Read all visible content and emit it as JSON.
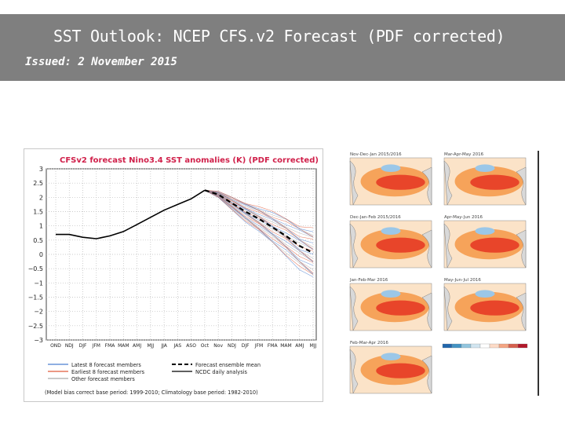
{
  "slide": {
    "title": "SST Outlook: NCEP CFS.v2 Forecast (PDF corrected)",
    "issued": "Issued: 2 November 2015"
  },
  "chart_data": {
    "type": "line",
    "title": "CFSv2 forecast Nino3.4 SST anomalies (K) (PDF corrected)",
    "categories": [
      "OND",
      "NDJ",
      "DJF",
      "JFM",
      "FMA",
      "MAM",
      "AMJ",
      "MJJ",
      "JJA",
      "JAS",
      "ASO",
      "Oct",
      "Nov",
      "NDJ",
      "DJF",
      "JFM",
      "FMA",
      "MAM",
      "AMJ",
      "MJJ"
    ],
    "ylim": [
      -3,
      3
    ],
    "yticks": [
      "3",
      "2.5",
      "2",
      "1.5",
      "1",
      "0.5",
      "0",
      "−0.5",
      "−1",
      "−1.5",
      "−2",
      "−2.5",
      "−3"
    ],
    "grid": true,
    "series": [
      {
        "name": "NCDC daily analysis",
        "color": "#000000",
        "values": [
          0.7,
          0.7,
          0.6,
          0.55,
          0.65,
          0.8,
          1.05,
          1.3,
          1.55,
          1.75,
          1.95,
          2.25,
          null,
          null,
          null,
          null,
          null,
          null,
          null,
          null
        ]
      },
      {
        "name": "Forecast ensemble mean",
        "color": "#000000",
        "dashed": true,
        "values": [
          null,
          null,
          null,
          null,
          null,
          null,
          null,
          null,
          null,
          null,
          null,
          2.25,
          2.1,
          1.8,
          1.5,
          1.25,
          0.95,
          0.65,
          0.3,
          0.05
        ]
      }
    ],
    "legend": {
      "placement": "bottom",
      "items": [
        {
          "label": "Latest 8 forecast members",
          "color": "#4a7fd0"
        },
        {
          "label": "Forecast ensemble mean",
          "color": "#000000"
        },
        {
          "label": "Earliest 8 forecast members",
          "color": "#e05a3a"
        },
        {
          "label": "NCDC daily analysis",
          "color": "#000000"
        },
        {
          "label": "Other forecast members",
          "color": "#aaaaaa"
        }
      ],
      "note": "(Model bias correct base period: 1999-2010; Climatology base period: 1982-2010)"
    }
  },
  "maps": {
    "labels": [
      "Nov-Dec-Jan 2015/2016",
      "Mar-Apr-May 2016",
      "Dec-Jan-Feb 2015/2016",
      "Apr-May-Jun 2016",
      "Jan-Feb-Mar 2016",
      "May-Jun-Jul 2016",
      "Feb-Mar-Apr 2016"
    ],
    "colorbar_colors": [
      "#2166ac",
      "#4393c3",
      "#92c5de",
      "#d1e5f0",
      "#ffffff",
      "#fddbc7",
      "#f4a582",
      "#d6604d",
      "#b2182b"
    ]
  }
}
